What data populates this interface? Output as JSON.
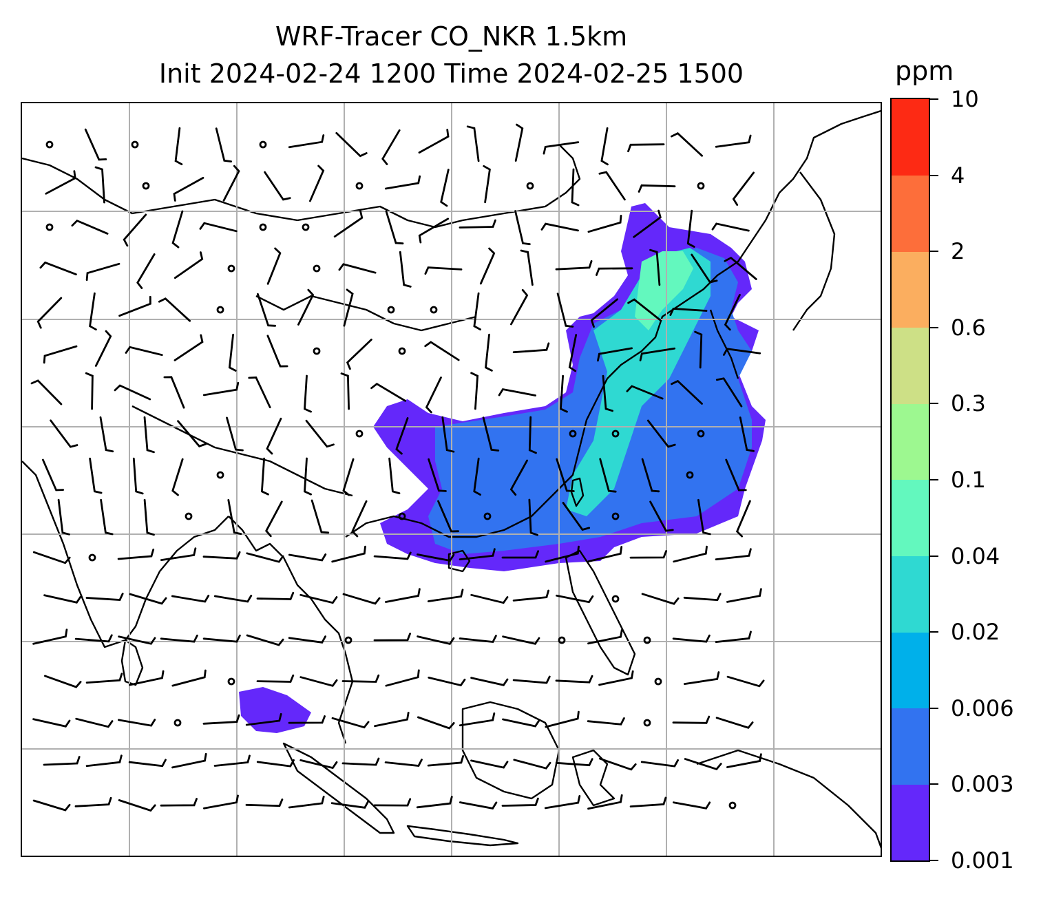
{
  "title": {
    "line1": "WRF-Tracer CO_NKR 1.5km",
    "line2": "Init 2024-02-24 1200 Time 2024-02-25 1500"
  },
  "map": {
    "projection": "mercator",
    "gridlines": true,
    "overlays": [
      "CO tracer concentration (shaded)",
      "wind barbs",
      "coastlines and country borders"
    ]
  },
  "colorbar": {
    "unit": "ppm",
    "ticks": [
      "0.001",
      "0.003",
      "0.006",
      "0.02",
      "0.04",
      "0.1",
      "0.3",
      "0.6",
      "2",
      "4",
      "10"
    ],
    "colors": [
      "#6428fa",
      "#3273f0",
      "#00b0ea",
      "#2fd9d2",
      "#63f8be",
      "#9df890",
      "#cde086",
      "#fbae5f",
      "#fd6e3a",
      "#fd2a14"
    ]
  }
}
